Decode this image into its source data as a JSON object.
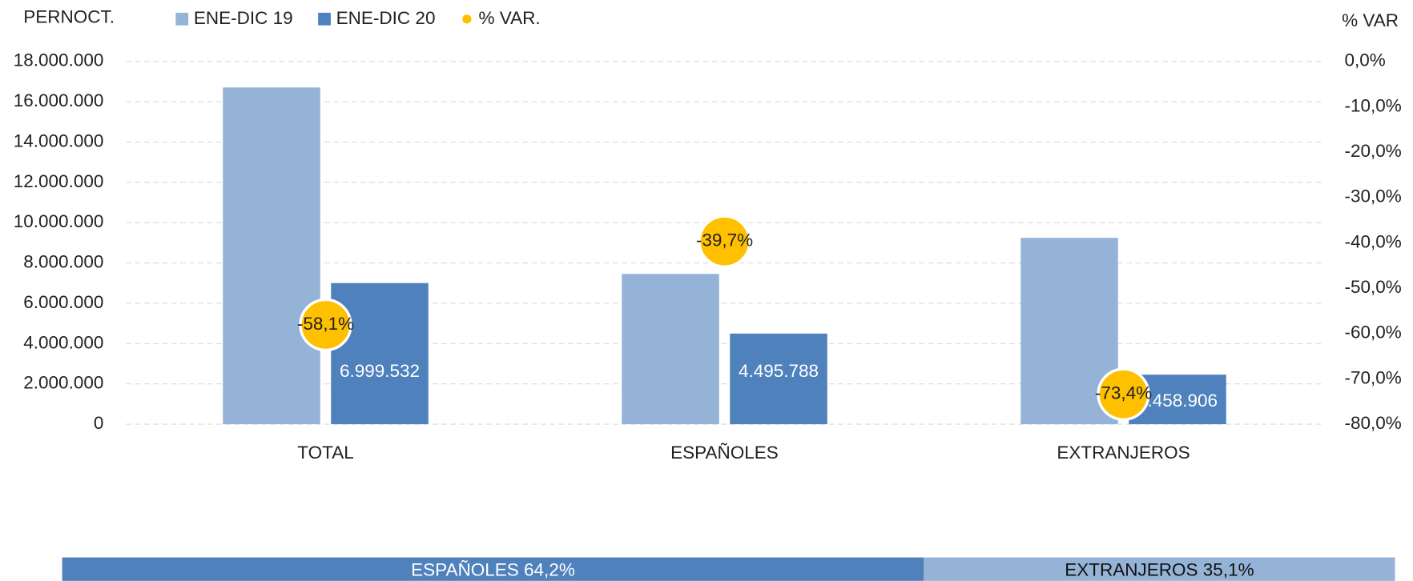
{
  "chart_data": {
    "type": "bar",
    "y_axis_label": "PERNOCT.",
    "y2_axis_label": "% VAR",
    "categories": [
      "TOTAL",
      "ESPAÑOLES",
      "EXTRANJEROS"
    ],
    "series": [
      {
        "name": "ENE-DIC 19",
        "color": "#95b3d7",
        "values": [
          16705000,
          7456000,
          9244000
        ]
      },
      {
        "name": "ENE-DIC 20",
        "color": "#4f81bd",
        "values": [
          6999532,
          4495788,
          2458906
        ],
        "value_labels": [
          "6.999.532",
          "4.495.788",
          "2.458.906"
        ]
      },
      {
        "name": "% VAR.",
        "color": "#ffc000",
        "axis": "y2",
        "values": [
          -58.1,
          -39.7,
          -73.4
        ],
        "value_labels": [
          "-58,1%",
          "-39,7%",
          "-73,4%"
        ]
      }
    ],
    "ylim": [
      0,
      18000000
    ],
    "yticks": [
      0,
      {
        "value": 2000000,
        "label": "2.000.000"
      },
      {
        "value": 4000000,
        "label": "4.000.000"
      },
      {
        "value": 6000000,
        "label": "6.000.000"
      },
      {
        "value": 8000000,
        "label": "8.000.000"
      },
      {
        "value": 10000000,
        "label": "10.000.000"
      },
      {
        "value": 12000000,
        "label": "12.000.000"
      },
      {
        "value": 14000000,
        "label": "14.000.000"
      },
      {
        "value": 16000000,
        "label": "16.000.000"
      },
      {
        "value": 18000000,
        "label": "18.000.000"
      }
    ],
    "y2lim": [
      -80,
      0
    ],
    "y2ticks": [
      {
        "value": -80,
        "label": "-80,0%"
      },
      {
        "value": -70,
        "label": "-70,0%"
      },
      {
        "value": -60,
        "label": "-60,0%"
      },
      {
        "value": -50,
        "label": "-50,0%"
      },
      {
        "value": -40,
        "label": "-40,0%"
      },
      {
        "value": -30,
        "label": "-30,0%"
      },
      {
        "value": -20,
        "label": "-20,0%"
      },
      {
        "value": -10,
        "label": "-10,0%"
      },
      {
        "value": 0,
        "label": "0,0%"
      }
    ],
    "grid": true
  },
  "share_bar": {
    "segments": [
      {
        "name": "ESPAÑOLES",
        "value": 64.2,
        "value_label": "64,2%",
        "color": "#4f81bd"
      },
      {
        "name": "EXTRANJEROS",
        "value": 35.1,
        "value_label": "35,1%",
        "color": "#95b3d7"
      }
    ]
  }
}
